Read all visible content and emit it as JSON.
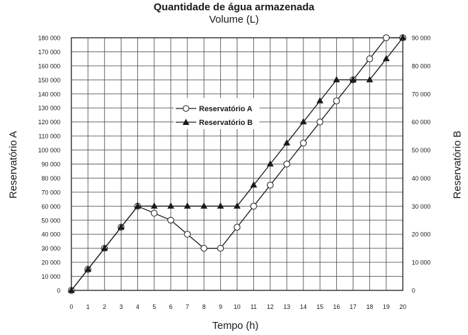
{
  "chart_data": {
    "type": "line",
    "title": "Quantidade de água armazenada",
    "subtitle": "Volume (L)",
    "xlabel": "Tempo (h)",
    "ylabel_left": "Reservatório A",
    "ylabel_right": "Reservatório B",
    "x": [
      0,
      1,
      2,
      3,
      4,
      5,
      6,
      7,
      8,
      9,
      10,
      11,
      12,
      13,
      14,
      15,
      16,
      17,
      18,
      19,
      20
    ],
    "xlim": [
      0,
      20
    ],
    "ylim_left": [
      0,
      180000
    ],
    "ylim_right": [
      0,
      90000
    ],
    "left_ticks": [
      "0",
      "10 000",
      "20 000",
      "30 000",
      "40 000",
      "50 000",
      "60 000",
      "70 000",
      "80 000",
      "90 000",
      "100 000",
      "110 000",
      "120 000",
      "130 000",
      "140 000",
      "150 000",
      "160 000",
      "170 000",
      "180 000"
    ],
    "right_ticks": [
      "0",
      "10 000",
      "20 000",
      "30 000",
      "40 000",
      "50 000",
      "60 000",
      "70 000",
      "80 000",
      "90 000"
    ],
    "x_ticks": [
      "0",
      "1",
      "2",
      "3",
      "4",
      "5",
      "6",
      "7",
      "8",
      "9",
      "10",
      "11",
      "12",
      "13",
      "14",
      "15",
      "16",
      "17",
      "18",
      "19",
      "20"
    ],
    "grid": true,
    "legend_position": "upper-center",
    "series": [
      {
        "name": "Reservatório A",
        "axis": "left",
        "marker": "open-circle",
        "values": [
          0,
          15000,
          30000,
          45000,
          60000,
          55000,
          50000,
          40000,
          30000,
          30000,
          45000,
          60000,
          75000,
          90000,
          105000,
          120000,
          135000,
          150000,
          165000,
          180000,
          180000
        ]
      },
      {
        "name": "Reservatório B",
        "axis": "right",
        "marker": "filled-triangle",
        "values": [
          0,
          7500,
          15000,
          22500,
          30000,
          30000,
          30000,
          30000,
          30000,
          30000,
          30000,
          37500,
          45000,
          52500,
          60000,
          67500,
          75000,
          75000,
          75000,
          82500,
          90000
        ]
      }
    ]
  }
}
